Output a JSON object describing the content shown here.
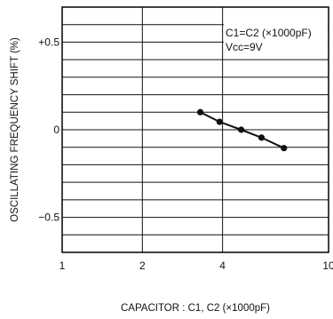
{
  "chart_data": {
    "type": "line",
    "xlabel": "CAPACITOR : C1, C2 (×1000pF)",
    "ylabel": "OSCILLATING FREQUENCY SHIFT (%)",
    "x_scale": "log",
    "xlim": [
      1,
      10
    ],
    "ylim": [
      -0.7,
      0.7
    ],
    "x_ticks": [
      1,
      2,
      4,
      10
    ],
    "x_tick_labels": [
      "1",
      "2",
      "4",
      "10"
    ],
    "y_ticks": [
      0.5,
      0,
      -0.5
    ],
    "y_tick_labels": [
      "+0.5",
      "0",
      "−0.5"
    ],
    "grid": true,
    "series": [
      {
        "x": [
          3.3,
          3.9,
          4.7,
          5.6,
          6.8
        ],
        "y": [
          0.1,
          0.045,
          0.0,
          -0.045,
          -0.105
        ]
      }
    ],
    "annotations": [
      {
        "label": "condition-1",
        "text": "C1=C2 (×1000pF)"
      },
      {
        "label": "condition-2",
        "text": "Vcc=9V"
      }
    ]
  }
}
